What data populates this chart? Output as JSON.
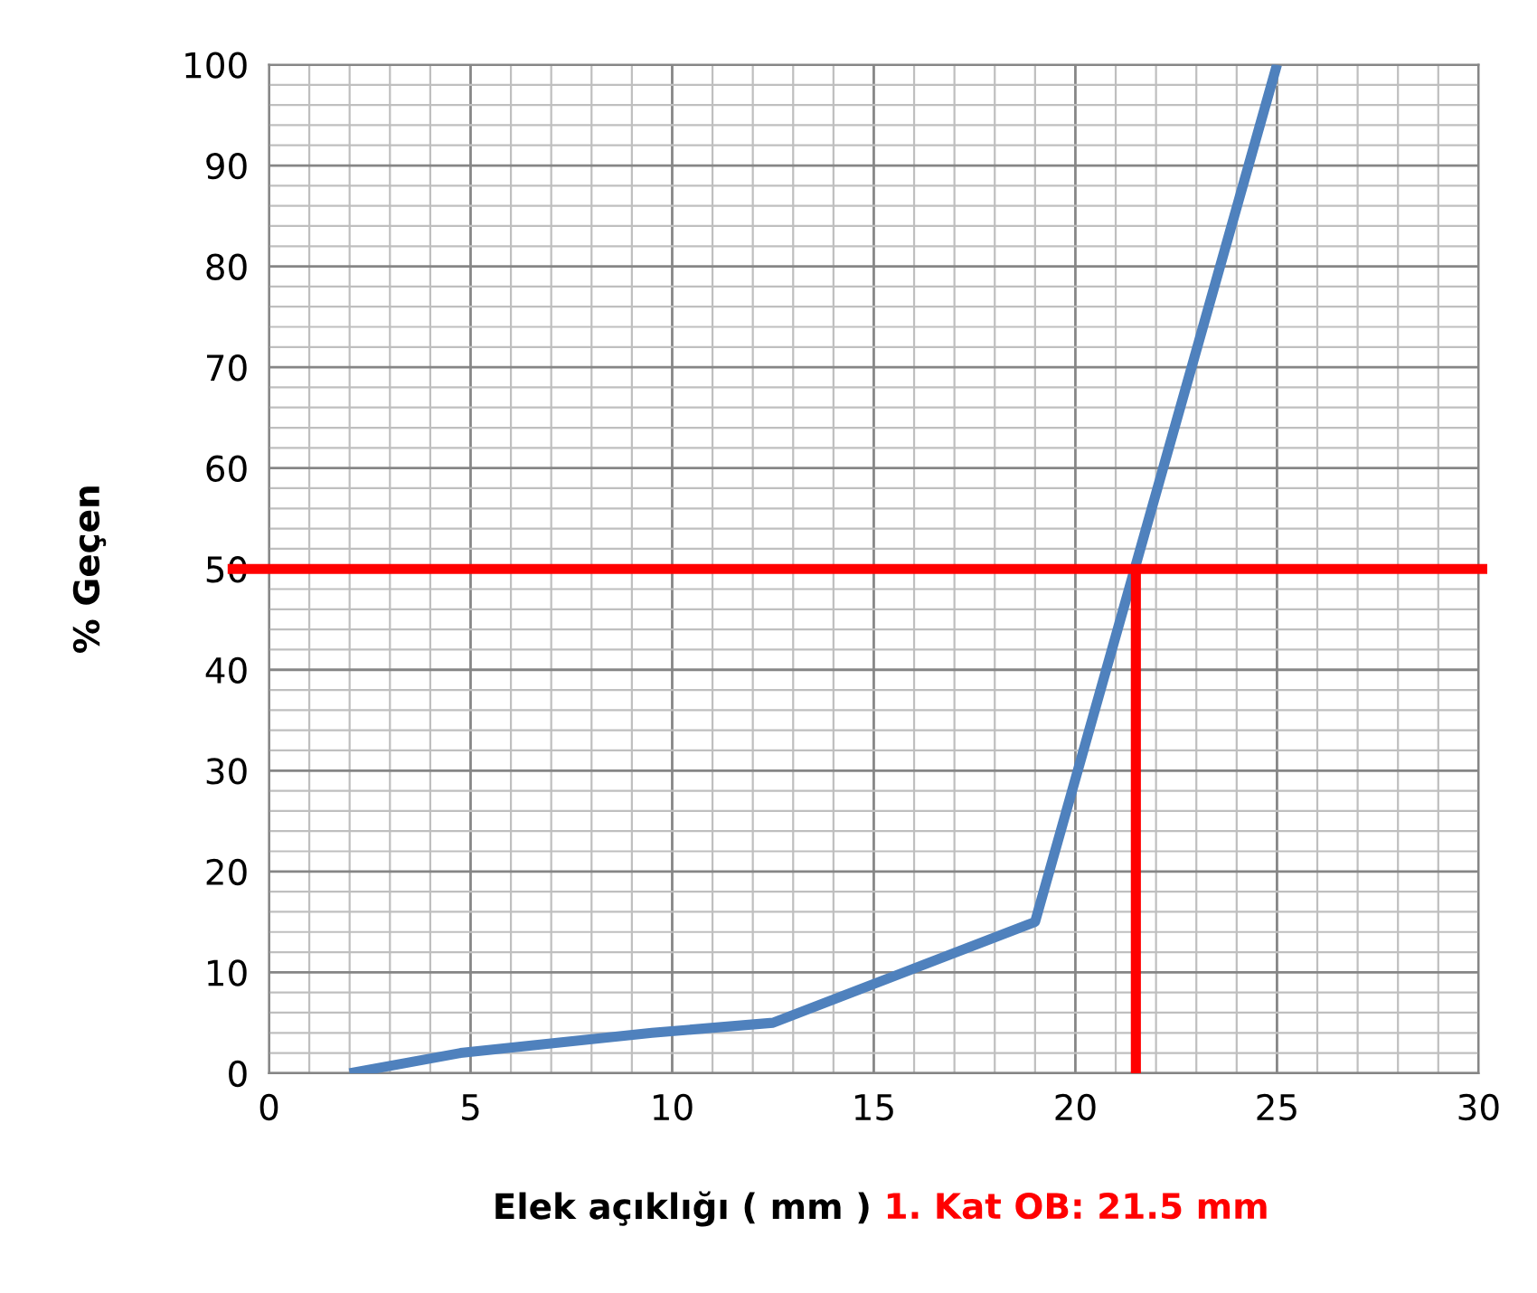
{
  "chart_data": {
    "type": "line",
    "xlabel": "Elek açıklığı ( mm )",
    "ylabel": "% Geçen",
    "annotations": [
      "1. Kat OB: 21.5 mm"
    ],
    "series": [
      {
        "color": "#4f81bd",
        "x": [
          2,
          4.75,
          9.5,
          12.5,
          19,
          25
        ],
        "values": [
          0,
          2,
          4,
          5,
          15,
          100
        ]
      },
      {
        "color": "#ff0000",
        "x": [
          21.5,
          21.5
        ],
        "values": [
          0,
          50
        ]
      }
    ],
    "ref_lines": [
      {
        "axis": "y",
        "value": 50,
        "color": "#ff0000"
      }
    ],
    "xlim": [
      0,
      30
    ],
    "xticks": [
      0,
      5,
      10,
      15,
      20,
      25,
      30
    ],
    "ylim": [
      0,
      100
    ],
    "yticks": [
      0,
      10,
      20,
      30,
      40,
      50,
      60,
      70,
      80,
      90,
      100
    ],
    "grid": true,
    "marker": "none",
    "line_style": "solid"
  }
}
